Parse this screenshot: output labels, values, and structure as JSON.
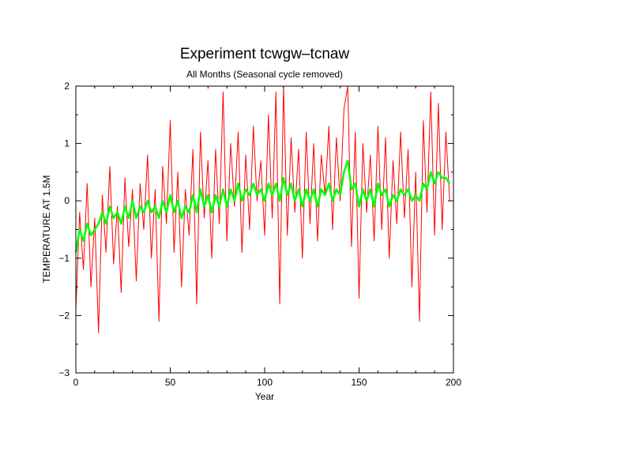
{
  "chart_data": {
    "type": "line",
    "title": "Experiment tcwgw–tcnaw",
    "subtitle": "All Months (Seasonal cycle removed)",
    "xlabel": "Year",
    "ylabel": "TEMPERATURE AT 1.5M",
    "xlim": [
      0,
      200
    ],
    "ylim": [
      -3,
      2
    ],
    "xticks": [
      0,
      50,
      100,
      150,
      200
    ],
    "yticks": [
      -3,
      -2,
      -1,
      0,
      1,
      2
    ],
    "grid": false,
    "legend": "none",
    "series": [
      {
        "color": "#ff0000",
        "x": [
          0,
          2,
          4,
          6,
          8,
          10,
          12,
          14,
          16,
          18,
          20,
          22,
          24,
          26,
          28,
          30,
          32,
          34,
          36,
          38,
          40,
          42,
          44,
          46,
          48,
          50,
          52,
          54,
          56,
          58,
          60,
          62,
          64,
          66,
          68,
          70,
          72,
          74,
          76,
          78,
          80,
          82,
          84,
          86,
          88,
          90,
          92,
          94,
          96,
          98,
          100,
          102,
          104,
          106,
          108,
          110,
          112,
          114,
          116,
          118,
          120,
          122,
          124,
          126,
          128,
          130,
          132,
          134,
          136,
          138,
          140,
          142,
          144,
          146,
          148,
          150,
          152,
          154,
          156,
          158,
          160,
          162,
          164,
          166,
          168,
          170,
          172,
          174,
          176,
          178,
          180,
          182,
          184,
          186,
          188,
          190,
          192,
          194,
          196,
          198
        ],
        "y": [
          -1.9,
          -0.2,
          -1.2,
          0.3,
          -1.5,
          -0.3,
          -2.3,
          0.1,
          -0.9,
          0.6,
          -1.1,
          -0.1,
          -1.6,
          0.4,
          -0.8,
          0.2,
          -1.4,
          0.3,
          -0.5,
          0.8,
          -1.0,
          0.2,
          -2.1,
          0.6,
          -0.4,
          1.4,
          -0.9,
          0.5,
          -1.5,
          0.2,
          -0.6,
          0.9,
          -1.8,
          1.2,
          -0.3,
          0.7,
          -1.0,
          0.9,
          -0.4,
          1.9,
          -0.7,
          1.0,
          -0.1,
          1.2,
          -0.9,
          0.8,
          -0.5,
          1.3,
          0.0,
          0.7,
          -0.6,
          1.5,
          -0.3,
          1.9,
          -1.8,
          2.0,
          -0.6,
          1.1,
          -0.2,
          0.9,
          -1.0,
          1.2,
          -0.4,
          1.0,
          -0.7,
          0.8,
          0.1,
          1.3,
          -0.5,
          1.1,
          0.0,
          1.6,
          2.0,
          -0.8,
          1.2,
          -1.7,
          1.0,
          -0.2,
          0.8,
          -0.7,
          1.3,
          -0.5,
          1.1,
          -1.0,
          0.7,
          -0.4,
          1.2,
          -0.3,
          0.9,
          -1.5,
          0.5,
          -2.1,
          1.4,
          -0.2,
          1.9,
          -0.6,
          1.7,
          -0.5,
          1.2,
          0.0
        ]
      },
      {
        "color": "#00ff00",
        "x": [
          0,
          2,
          4,
          6,
          8,
          10,
          12,
          14,
          16,
          18,
          20,
          22,
          24,
          26,
          28,
          30,
          32,
          34,
          36,
          38,
          40,
          42,
          44,
          46,
          48,
          50,
          52,
          54,
          56,
          58,
          60,
          62,
          64,
          66,
          68,
          70,
          72,
          74,
          76,
          78,
          80,
          82,
          84,
          86,
          88,
          90,
          92,
          94,
          96,
          98,
          100,
          102,
          104,
          106,
          108,
          110,
          112,
          114,
          116,
          118,
          120,
          122,
          124,
          126,
          128,
          130,
          132,
          134,
          136,
          138,
          140,
          142,
          144,
          146,
          148,
          150,
          152,
          154,
          156,
          158,
          160,
          162,
          164,
          166,
          168,
          170,
          172,
          174,
          176,
          178,
          180,
          182,
          184,
          186,
          188,
          190,
          192,
          194,
          196,
          198
        ],
        "y": [
          -0.9,
          -0.5,
          -0.7,
          -0.4,
          -0.6,
          -0.5,
          -0.4,
          -0.2,
          -0.4,
          -0.1,
          -0.3,
          -0.2,
          -0.4,
          -0.1,
          -0.3,
          0.0,
          -0.3,
          -0.1,
          -0.2,
          0.0,
          -0.2,
          -0.1,
          -0.3,
          0.0,
          -0.2,
          0.1,
          -0.2,
          0.0,
          -0.3,
          -0.1,
          -0.2,
          0.1,
          -0.2,
          0.2,
          -0.1,
          0.1,
          -0.2,
          0.1,
          -0.1,
          0.2,
          -0.1,
          0.2,
          0.0,
          0.3,
          0.0,
          0.2,
          0.1,
          0.3,
          0.1,
          0.2,
          0.0,
          0.3,
          0.1,
          0.3,
          0.0,
          0.4,
          0.1,
          0.3,
          0.0,
          0.2,
          -0.1,
          0.2,
          0.0,
          0.2,
          -0.1,
          0.2,
          0.1,
          0.3,
          0.0,
          0.2,
          0.1,
          0.5,
          0.7,
          0.2,
          0.3,
          -0.1,
          0.2,
          0.0,
          0.2,
          -0.1,
          0.3,
          0.1,
          0.2,
          -0.1,
          0.1,
          0.0,
          0.2,
          0.1,
          0.2,
          0.0,
          0.1,
          0.0,
          0.3,
          0.2,
          0.5,
          0.3,
          0.5,
          0.4,
          0.4,
          0.3
        ]
      }
    ]
  }
}
